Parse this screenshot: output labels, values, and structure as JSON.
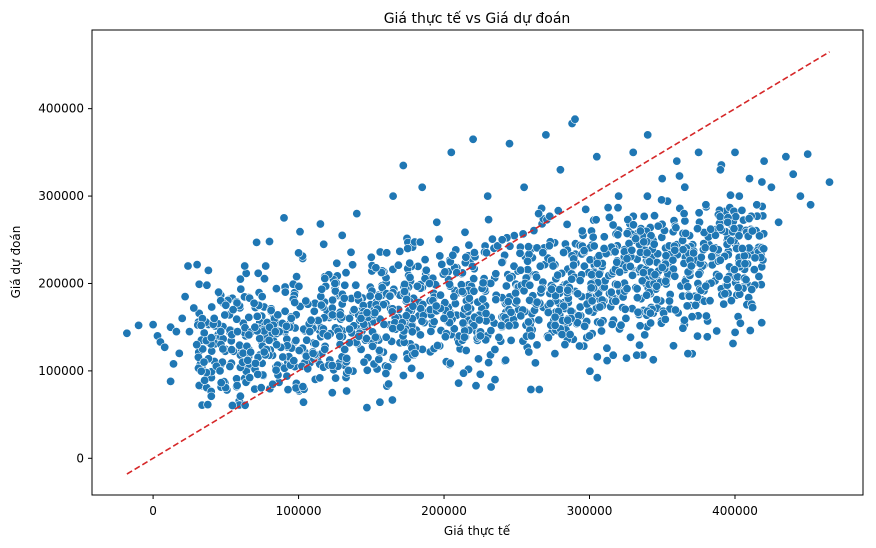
{
  "chart_data": {
    "type": "scatter",
    "title": "Giá thực tế vs Giá dự đoán",
    "xlabel": "Giá thực tế",
    "ylabel": "Giá dự đoán",
    "xlim": [
      -42000,
      488000
    ],
    "ylim": [
      -42000,
      490000
    ],
    "x_ticks": [
      0,
      100000,
      200000,
      300000,
      400000
    ],
    "x_tick_labels": [
      "0",
      "100000",
      "200000",
      "300000",
      "400000"
    ],
    "y_ticks": [
      0,
      100000,
      200000,
      300000,
      400000
    ],
    "y_tick_labels": [
      "0",
      "100000",
      "200000",
      "300000",
      "400000"
    ],
    "grid": false,
    "series": [
      {
        "color": "#1f77b4",
        "points": [
          [
            -18000,
            143000
          ],
          [
            -10000,
            152000
          ],
          [
            0,
            153000
          ],
          [
            3000,
            140000
          ],
          [
            5000,
            133000
          ],
          [
            8000,
            127000
          ],
          [
            12000,
            88000
          ],
          [
            12000,
            150000
          ],
          [
            14000,
            108000
          ],
          [
            16000,
            145000
          ],
          [
            18000,
            120000
          ],
          [
            20000,
            160000
          ],
          [
            22000,
            185000
          ],
          [
            24000,
            220000
          ],
          [
            25000,
            145000
          ],
          [
            28000,
            172000
          ],
          [
            30000,
            130000
          ],
          [
            33000,
            152000
          ],
          [
            35000,
            110000
          ],
          [
            37000,
            198000
          ],
          [
            38000,
            215000
          ],
          [
            40000,
            71000
          ],
          [
            40000,
            138000
          ],
          [
            42000,
            160000
          ],
          [
            45000,
            190000
          ],
          [
            46000,
            100000
          ],
          [
            48000,
            125000
          ],
          [
            50000,
            175000
          ],
          [
            55000,
            170000
          ],
          [
            58000,
            145000
          ],
          [
            60000,
            71000
          ],
          [
            60000,
            205000
          ],
          [
            63000,
            220000
          ],
          [
            65000,
            112000
          ],
          [
            70000,
            150000
          ],
          [
            72000,
            96000
          ],
          [
            75000,
            185000
          ],
          [
            80000,
            248000
          ],
          [
            85000,
            130000
          ],
          [
            90000,
            275000
          ],
          [
            92000,
            94000
          ],
          [
            95000,
            160000
          ],
          [
            100000,
            235000
          ],
          [
            103000,
            82000
          ],
          [
            105000,
            180000
          ],
          [
            110000,
            120000
          ],
          [
            115000,
            268000
          ],
          [
            120000,
            140000
          ],
          [
            125000,
            200000
          ],
          [
            130000,
            255000
          ],
          [
            133000,
            77000
          ],
          [
            135000,
            160000
          ],
          [
            140000,
            280000
          ],
          [
            145000,
            110000
          ],
          [
            147000,
            58000
          ],
          [
            150000,
            230000
          ],
          [
            155000,
            185000
          ],
          [
            160000,
            97000
          ],
          [
            165000,
            300000
          ],
          [
            170000,
            150000
          ],
          [
            172000,
            335000
          ],
          [
            175000,
            240000
          ],
          [
            180000,
            120000
          ],
          [
            185000,
            310000
          ],
          [
            190000,
            200000
          ],
          [
            195000,
            270000
          ],
          [
            200000,
            160000
          ],
          [
            205000,
            350000
          ],
          [
            210000,
            86000
          ],
          [
            215000,
            230000
          ],
          [
            220000,
            365000
          ],
          [
            225000,
            140000
          ],
          [
            230000,
            300000
          ],
          [
            235000,
            90000
          ],
          [
            240000,
            250000
          ],
          [
            245000,
            360000
          ],
          [
            250000,
            180000
          ],
          [
            255000,
            310000
          ],
          [
            260000,
            140000
          ],
          [
            265000,
            280000
          ],
          [
            270000,
            370000
          ],
          [
            275000,
            220000
          ],
          [
            280000,
            330000
          ],
          [
            285000,
            158000
          ],
          [
            288000,
            383000
          ],
          [
            290000,
            388000
          ],
          [
            295000,
            260000
          ],
          [
            300000,
            140000
          ],
          [
            305000,
            345000
          ],
          [
            310000,
            240000
          ],
          [
            315000,
            190000
          ],
          [
            320000,
            300000
          ],
          [
            325000,
            160000
          ],
          [
            330000,
            350000
          ],
          [
            335000,
            260000
          ],
          [
            340000,
            370000
          ],
          [
            345000,
            210000
          ],
          [
            350000,
            320000
          ],
          [
            355000,
            180000
          ],
          [
            360000,
            340000
          ],
          [
            365000,
            280000
          ],
          [
            370000,
            220000
          ],
          [
            375000,
            350000
          ],
          [
            380000,
            290000
          ],
          [
            385000,
            240000
          ],
          [
            390000,
            330000
          ],
          [
            395000,
            270000
          ],
          [
            400000,
            350000
          ],
          [
            403000,
            300000
          ],
          [
            405000,
            240000
          ],
          [
            410000,
            320000
          ],
          [
            412000,
            260000
          ],
          [
            415000,
            290000
          ],
          [
            420000,
            340000
          ],
          [
            425000,
            310000
          ],
          [
            430000,
            270000
          ],
          [
            435000,
            345000
          ],
          [
            440000,
            325000
          ],
          [
            445000,
            300000
          ],
          [
            450000,
            348000
          ],
          [
            452000,
            290000
          ],
          [
            465000,
            316000
          ]
        ]
      }
    ],
    "reference_line": {
      "color": "#d62728",
      "style": "dashed",
      "from": [
        -18000,
        -18000
      ],
      "to": [
        465000,
        465000
      ]
    },
    "density_band": {
      "note_color": "#1f77b4"
    }
  }
}
